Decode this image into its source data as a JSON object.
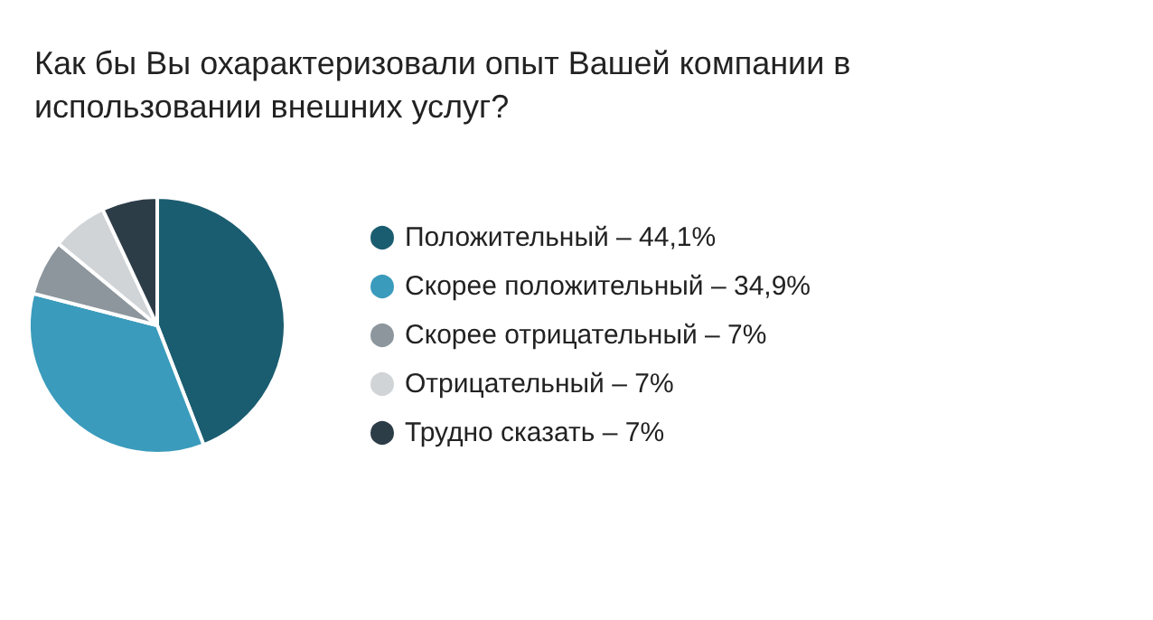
{
  "chart_data": {
    "type": "pie",
    "title": "Как бы Вы охарактеризовали опыт Вашей компании в использовании внешних услуг?",
    "categories": [
      "Положительный – 44,1%",
      "Скорее положительный – 34,9%",
      "Скорее отрицательный – 7%",
      "Отрицательный – 7%",
      "Трудно сказать – 7%"
    ],
    "values": [
      44.1,
      34.9,
      7,
      7,
      7
    ],
    "colors": [
      "#1b5d70",
      "#3a9bbc",
      "#8c969c",
      "#d0d4d7",
      "#2d3d48"
    ],
    "legend": "right"
  }
}
